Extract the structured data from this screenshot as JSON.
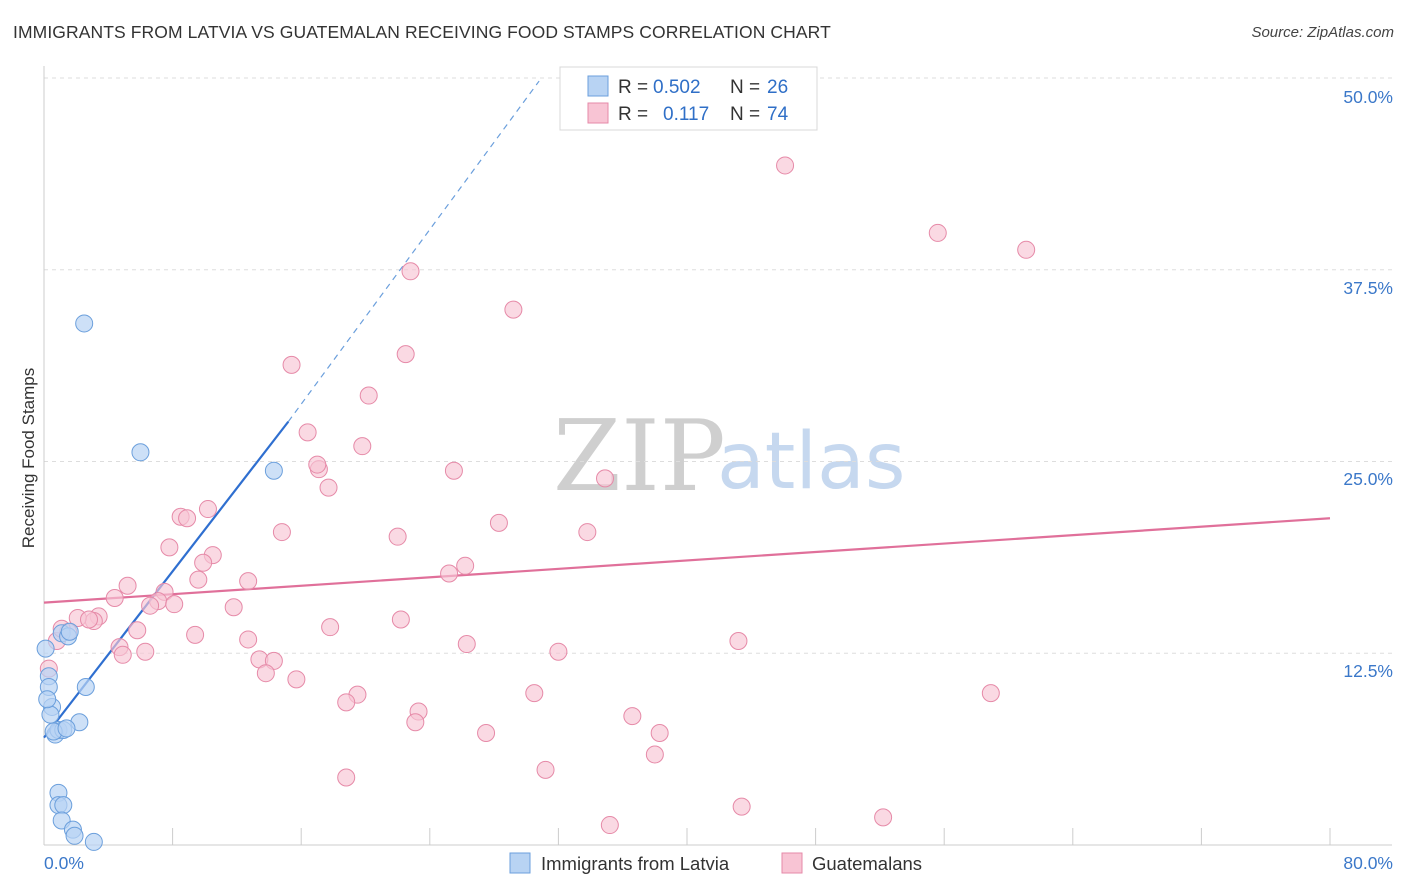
{
  "header": {
    "title": "IMMIGRANTS FROM LATVIA VS GUATEMALAN RECEIVING FOOD STAMPS CORRELATION CHART",
    "source": "Source: ZipAtlas.com"
  },
  "watermark": {
    "zip": "ZIP",
    "atlas": "atlas"
  },
  "legend": {
    "series": [
      {
        "r_label": "R = ",
        "r_value": "0.502",
        "n_label": "N = ",
        "n_value": "26"
      },
      {
        "r_label": "R = ",
        "r_value": "0.117",
        "n_label": "N = ",
        "n_value": "74"
      }
    ]
  },
  "colors": {
    "blue_fill": "#b8d3f3",
    "blue_stroke": "#6b9fdc",
    "blue_line": "#2f6fd0",
    "pink_fill": "#f8c4d4",
    "pink_stroke": "#e68aa8",
    "pink_line": "#e0709a",
    "grid": "#dddddd",
    "axis": "#cccccc"
  },
  "chart_data": {
    "type": "scatter",
    "title": "IMMIGRANTS FROM LATVIA VS GUATEMALAN RECEIVING FOOD STAMPS CORRELATION CHART",
    "xlabel": "",
    "ylabel": "Receiving Food Stamps",
    "xlim": [
      0,
      80
    ],
    "ylim": [
      0,
      50
    ],
    "x_tick_labels": [
      "0.0%",
      "80.0%"
    ],
    "y_ticks": [
      12.5,
      25.0,
      37.5,
      50.0
    ],
    "y_tick_labels": [
      "12.5%",
      "25.0%",
      "37.5%",
      "50.0%"
    ],
    "grid": true,
    "legend_position": "top-center",
    "series": [
      {
        "name": "Immigrants from Latvia",
        "color": "#6b9fdc",
        "trend": {
          "x": [
            0,
            15.2
          ],
          "y": [
            7.0,
            27.6
          ],
          "extended_to": [
            30.8,
            49.8
          ]
        },
        "points": [
          [
            0.1,
            12.8
          ],
          [
            0.3,
            11.0
          ],
          [
            0.3,
            10.3
          ],
          [
            0.5,
            9.0
          ],
          [
            0.4,
            8.5
          ],
          [
            0.7,
            7.2
          ],
          [
            0.9,
            7.5
          ],
          [
            1.2,
            7.5
          ],
          [
            2.2,
            8.0
          ],
          [
            2.6,
            10.3
          ],
          [
            1.1,
            13.8
          ],
          [
            1.5,
            13.6
          ],
          [
            0.9,
            3.4
          ],
          [
            0.9,
            2.6
          ],
          [
            1.2,
            2.6
          ],
          [
            1.1,
            1.6
          ],
          [
            1.8,
            1.0
          ],
          [
            1.9,
            0.6
          ],
          [
            3.1,
            0.2
          ],
          [
            2.5,
            34.0
          ],
          [
            6.0,
            25.6
          ],
          [
            14.3,
            24.4
          ],
          [
            0.6,
            7.4
          ],
          [
            1.6,
            13.9
          ],
          [
            1.4,
            7.6
          ],
          [
            0.2,
            9.5
          ]
        ]
      },
      {
        "name": "Guatemalans",
        "color": "#e68aa8",
        "trend": {
          "x": [
            0,
            80
          ],
          "y": [
            15.8,
            21.3
          ]
        },
        "points": [
          [
            46.1,
            44.3
          ],
          [
            55.6,
            39.9
          ],
          [
            61.1,
            38.8
          ],
          [
            22.8,
            37.4
          ],
          [
            29.2,
            34.9
          ],
          [
            22.5,
            32.0
          ],
          [
            15.4,
            31.3
          ],
          [
            20.2,
            29.3
          ],
          [
            16.4,
            26.9
          ],
          [
            19.8,
            26.0
          ],
          [
            17.1,
            24.5
          ],
          [
            17.0,
            24.8
          ],
          [
            25.5,
            24.4
          ],
          [
            34.9,
            23.9
          ],
          [
            17.7,
            23.3
          ],
          [
            10.2,
            21.9
          ],
          [
            8.5,
            21.4
          ],
          [
            8.9,
            21.3
          ],
          [
            28.3,
            21.0
          ],
          [
            33.8,
            20.4
          ],
          [
            14.8,
            20.4
          ],
          [
            22.0,
            20.1
          ],
          [
            7.8,
            19.4
          ],
          [
            10.5,
            18.9
          ],
          [
            9.9,
            18.4
          ],
          [
            26.2,
            18.2
          ],
          [
            25.2,
            17.7
          ],
          [
            9.6,
            17.3
          ],
          [
            12.7,
            17.2
          ],
          [
            5.2,
            16.9
          ],
          [
            7.5,
            16.5
          ],
          [
            4.4,
            16.1
          ],
          [
            7.1,
            15.9
          ],
          [
            11.8,
            15.5
          ],
          [
            6.6,
            15.6
          ],
          [
            3.4,
            14.9
          ],
          [
            3.1,
            14.6
          ],
          [
            2.1,
            14.8
          ],
          [
            2.8,
            14.7
          ],
          [
            22.2,
            14.7
          ],
          [
            17.8,
            14.2
          ],
          [
            5.8,
            14.0
          ],
          [
            9.4,
            13.7
          ],
          [
            1.5,
            13.9
          ],
          [
            0.8,
            13.3
          ],
          [
            12.7,
            13.4
          ],
          [
            26.3,
            13.1
          ],
          [
            43.2,
            13.3
          ],
          [
            4.7,
            12.9
          ],
          [
            6.3,
            12.6
          ],
          [
            32.0,
            12.6
          ],
          [
            13.4,
            12.1
          ],
          [
            14.3,
            12.0
          ],
          [
            13.8,
            11.2
          ],
          [
            15.7,
            10.8
          ],
          [
            0.3,
            11.5
          ],
          [
            19.5,
            9.8
          ],
          [
            30.5,
            9.9
          ],
          [
            58.9,
            9.9
          ],
          [
            18.8,
            9.3
          ],
          [
            23.3,
            8.7
          ],
          [
            36.6,
            8.4
          ],
          [
            23.1,
            8.0
          ],
          [
            38.3,
            7.3
          ],
          [
            27.5,
            7.3
          ],
          [
            38.0,
            5.9
          ],
          [
            31.2,
            4.9
          ],
          [
            18.8,
            4.4
          ],
          [
            43.4,
            2.5
          ],
          [
            52.2,
            1.8
          ],
          [
            35.2,
            1.3
          ],
          [
            1.1,
            14.1
          ],
          [
            8.1,
            15.7
          ],
          [
            4.9,
            12.4
          ]
        ]
      }
    ]
  }
}
